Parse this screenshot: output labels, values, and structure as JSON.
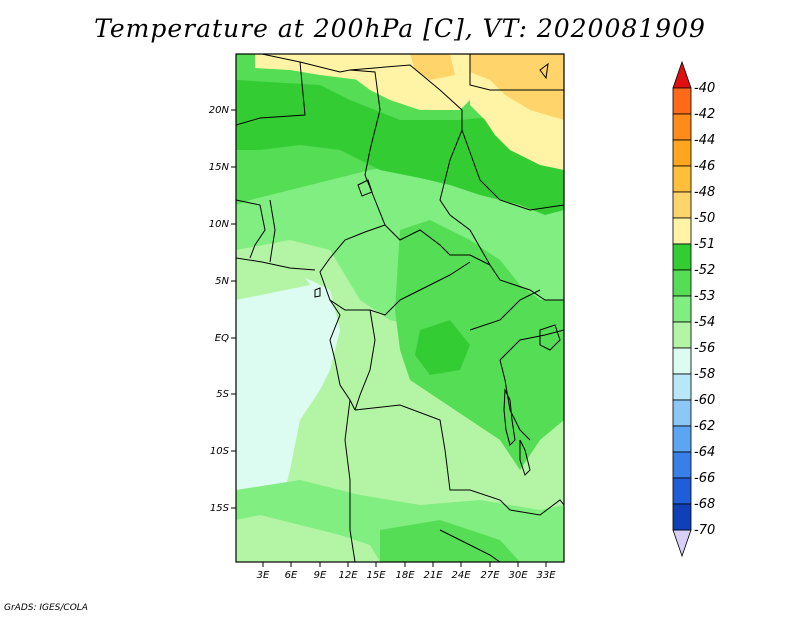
{
  "title": "Temperature at 200hPa [C], VT: 2020081909",
  "footer": "GrADS: IGES/COLA",
  "map": {
    "lat_labels": [
      "20N",
      "15N",
      "10N",
      "5N",
      "EQ",
      "5S",
      "10S",
      "15S"
    ],
    "lon_labels": [
      "3E",
      "6E",
      "9E",
      "12E",
      "15E",
      "18E",
      "21E",
      "24E",
      "27E",
      "30E",
      "33E"
    ]
  },
  "colorbar": {
    "labels": [
      "-40",
      "-42",
      "-44",
      "-46",
      "-48",
      "-50",
      "-51",
      "-52",
      "-53",
      "-54",
      "-56",
      "-58",
      "-60",
      "-62",
      "-64",
      "-66",
      "-68",
      "-70"
    ],
    "colors": [
      "#ff3a1a",
      "#ff6a1a",
      "#ff8c1a",
      "#ffa51f",
      "#ffbf3a",
      "#ffd56b",
      "#fff4a6",
      "#33cc33",
      "#55dd55",
      "#80ee80",
      "#b4f5a5",
      "#dcfcf2",
      "#b8e8f8",
      "#8cc8f5",
      "#5ca5f0",
      "#3880e8",
      "#1f5ed8",
      "#0f40b8",
      "#062a98",
      "#020f58"
    ],
    "top_arrow_color": "#e01010",
    "bottom_arrow_color": "#d8d0f8"
  },
  "legend_colors": {
    "background_warm_top": "#fff4a6",
    "background_warm_tan": "#ffd56b",
    "border_color": "#000000"
  }
}
